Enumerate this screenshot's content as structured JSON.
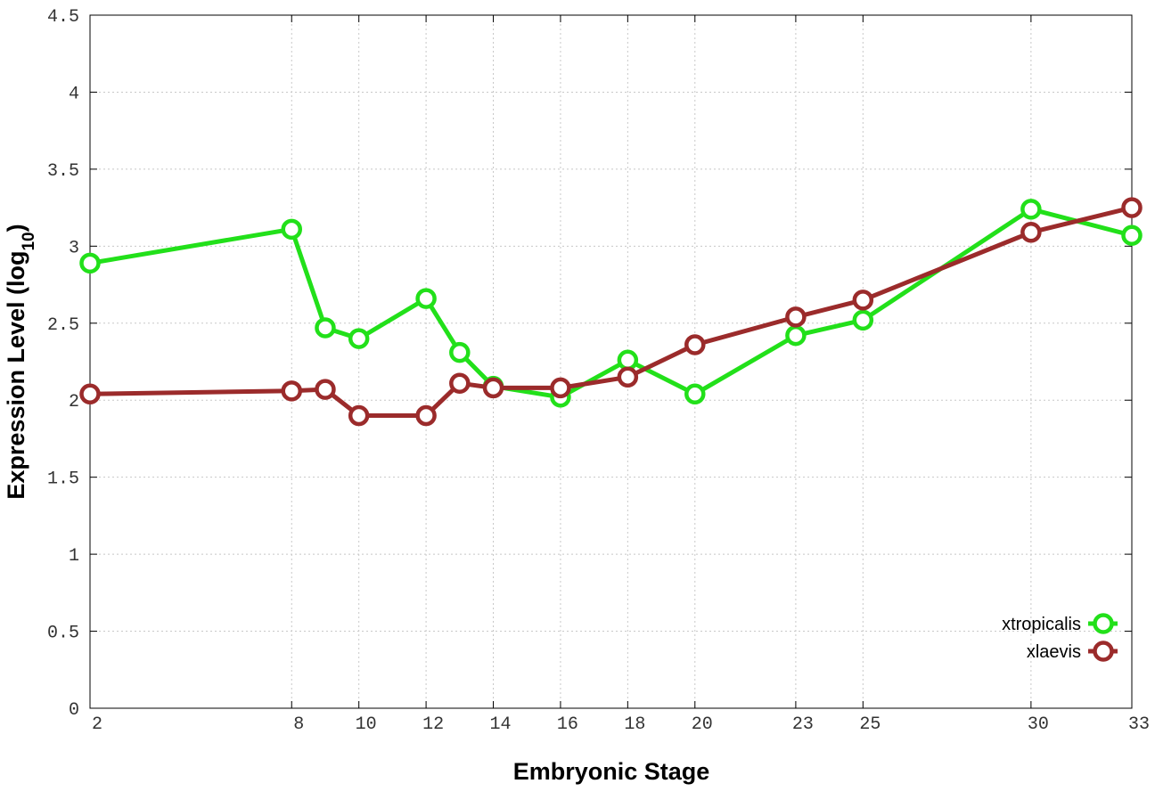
{
  "chart_data": {
    "type": "line",
    "title": "",
    "xlabel": "Embryonic Stage",
    "ylabel": {
      "main": "Expression Level (log",
      "sub": "10",
      "close": ")"
    },
    "xlim": [
      2,
      33
    ],
    "ylim": [
      0,
      4.5
    ],
    "x_ticks": [
      2,
      8,
      10,
      12,
      14,
      16,
      18,
      20,
      23,
      25,
      30,
      33
    ],
    "y_ticks": [
      0,
      0.5,
      1,
      1.5,
      2,
      2.5,
      3,
      3.5,
      4,
      4.5
    ],
    "y_tick_labels": [
      "0",
      "0.5",
      "1",
      "1.5",
      "2",
      "2.5",
      "3",
      "3.5",
      "4",
      "4.5"
    ],
    "grid": true,
    "legend_position": "bottom-right",
    "x": [
      2,
      8,
      9,
      10,
      12,
      13,
      14,
      16,
      18,
      20,
      23,
      25,
      30,
      33
    ],
    "series": [
      {
        "name": "xtropicalis",
        "color": "#22e01a",
        "values": [
          2.89,
          3.11,
          2.47,
          2.4,
          2.66,
          2.31,
          2.09,
          2.02,
          2.26,
          2.04,
          2.42,
          2.52,
          3.24,
          3.07
        ]
      },
      {
        "name": "xlaevis",
        "color": "#9b2b2b",
        "values": [
          2.04,
          2.06,
          2.07,
          1.9,
          1.9,
          2.11,
          2.08,
          2.08,
          2.15,
          2.36,
          2.54,
          2.65,
          3.09,
          3.25
        ]
      }
    ]
  }
}
